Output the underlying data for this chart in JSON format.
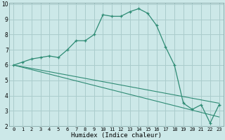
{
  "xlabel": "Humidex (Indice chaleur)",
  "line1_x": [
    0,
    1,
    2,
    3,
    4,
    5,
    6,
    7,
    8,
    9,
    10,
    11,
    12,
    13,
    14,
    15,
    16,
    17,
    18,
    19,
    20,
    21,
    22,
    23
  ],
  "line1_y": [
    6.0,
    6.2,
    6.4,
    6.5,
    6.6,
    6.5,
    7.0,
    7.6,
    7.6,
    8.0,
    9.3,
    9.2,
    9.2,
    9.5,
    9.7,
    9.4,
    8.6,
    7.2,
    6.0,
    3.5,
    3.1,
    3.4,
    2.2,
    3.4
  ],
  "line2_x": [
    0,
    23
  ],
  "line2_y": [
    6.0,
    3.5
  ],
  "line3_x": [
    0,
    23
  ],
  "line3_y": [
    6.0,
    2.6
  ],
  "line_color": "#2e8b74",
  "bg_color": "#cce8e8",
  "grid_color": "#aacccc",
  "ylim": [
    2,
    10
  ],
  "xlim": [
    -0.5,
    23.5
  ],
  "yticks": [
    2,
    3,
    4,
    5,
    6,
    7,
    8,
    9,
    10
  ],
  "xticks": [
    0,
    1,
    2,
    3,
    4,
    5,
    6,
    7,
    8,
    9,
    10,
    11,
    12,
    13,
    14,
    15,
    16,
    17,
    18,
    19,
    20,
    21,
    22,
    23
  ],
  "tick_fontsize": 5.0,
  "xlabel_fontsize": 6.5
}
